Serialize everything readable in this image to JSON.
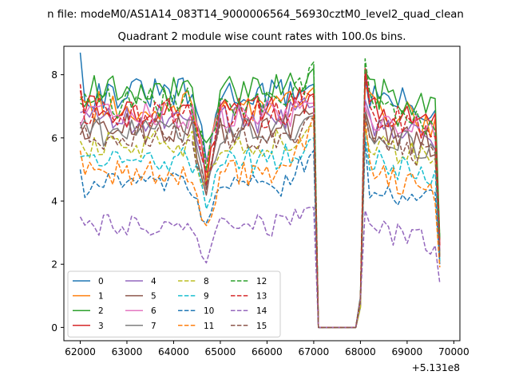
{
  "chart_data": {
    "type": "line",
    "suptitle": "n file: modeM0/AS1A14_083T14_9000006564_56930cztM0_level2_quad_clean",
    "title": "Quadrant 2 module wise count rates with 100.0s bins.",
    "xlabel": "",
    "ylabel": "",
    "x_offset_label": "+5.131e8",
    "xlim": [
      61650,
      70130
    ],
    "ylim": [
      -0.42,
      8.9
    ],
    "xticks": [
      62000,
      63000,
      64000,
      65000,
      66000,
      67000,
      68000,
      69000,
      70000
    ],
    "yticks": [
      0,
      2,
      4,
      6,
      8
    ],
    "x_start": 62000,
    "x_step": 100,
    "x_count": 78,
    "legend_columns": 4,
    "series": [
      {
        "name": "0",
        "color": "#1f77b4",
        "dash": "solid",
        "base": 7.4,
        "first": 8.7,
        "pre_gap": 7.7,
        "post_peak": 7.9,
        "dip": 5.2,
        "last": 2.6
      },
      {
        "name": "1",
        "color": "#ff7f0e",
        "dash": "solid",
        "base": 7.0,
        "first": 7.3,
        "pre_gap": 7.6,
        "post_peak": 7.6,
        "dip": 5.0,
        "last": 2.5
      },
      {
        "name": "2",
        "color": "#2ca02c",
        "dash": "solid",
        "base": 7.5,
        "first": 7.1,
        "pre_gap": 8.2,
        "post_peak": 8.1,
        "dip": 5.7,
        "last": 2.8
      },
      {
        "name": "3",
        "color": "#d62728",
        "dash": "solid",
        "base": 6.9,
        "first": 7.5,
        "pre_gap": 7.4,
        "post_peak": 8.2,
        "dip": 4.8,
        "last": 2.6
      },
      {
        "name": "4",
        "color": "#9467bd",
        "dash": "solid",
        "base": 6.6,
        "first": 6.8,
        "pre_gap": 7.0,
        "post_peak": 7.2,
        "dip": 4.7,
        "last": 2.4
      },
      {
        "name": "5",
        "color": "#8c564b",
        "dash": "solid",
        "base": 6.3,
        "first": 6.5,
        "pre_gap": 6.8,
        "post_peak": 6.9,
        "dip": 4.4,
        "last": 2.3
      },
      {
        "name": "6",
        "color": "#e377c2",
        "dash": "solid",
        "base": 6.7,
        "first": 6.4,
        "pre_gap": 7.1,
        "post_peak": 7.0,
        "dip": 4.9,
        "last": 2.5
      },
      {
        "name": "7",
        "color": "#7f7f7f",
        "dash": "solid",
        "base": 6.2,
        "first": 6.3,
        "pre_gap": 6.7,
        "post_peak": 6.8,
        "dip": 4.5,
        "last": 2.3
      },
      {
        "name": "8",
        "color": "#bcbd22",
        "dash": "dashed",
        "base": 5.8,
        "first": 5.9,
        "pre_gap": 6.4,
        "post_peak": 6.3,
        "dip": 4.3,
        "last": 2.2
      },
      {
        "name": "9",
        "color": "#17becf",
        "dash": "dashed",
        "base": 5.3,
        "first": 5.4,
        "pre_gap": 6.0,
        "post_peak": 6.1,
        "dip": 3.8,
        "last": 2.1
      },
      {
        "name": "10",
        "color": "#1f77b4",
        "dash": "dashed",
        "base": 4.5,
        "first": 5.0,
        "pre_gap": 5.6,
        "post_peak": 5.9,
        "dip": 2.9,
        "last": 2.0
      },
      {
        "name": "11",
        "color": "#ff7f0e",
        "dash": "dashed",
        "base": 4.9,
        "first": 5.6,
        "pre_gap": 6.7,
        "post_peak": 6.6,
        "dip": 3.2,
        "last": 1.9
      },
      {
        "name": "12",
        "color": "#2ca02c",
        "dash": "dashed",
        "base": 7.1,
        "first": 7.2,
        "pre_gap": 8.4,
        "post_peak": 8.5,
        "dip": 5.4,
        "last": 2.8
      },
      {
        "name": "13",
        "color": "#d62728",
        "dash": "dashed",
        "base": 6.8,
        "first": 7.7,
        "pre_gap": 7.3,
        "post_peak": 8.0,
        "dip": 4.8,
        "last": 2.6
      },
      {
        "name": "14",
        "color": "#9467bd",
        "dash": "dashed",
        "base": 3.2,
        "first": 3.5,
        "pre_gap": 3.8,
        "post_peak": 3.7,
        "dip": 2.3,
        "last": 1.4
      },
      {
        "name": "15",
        "color": "#8c564b",
        "dash": "dashed",
        "base": 6.0,
        "first": 6.1,
        "pre_gap": 6.6,
        "post_peak": 6.7,
        "dip": 4.2,
        "last": 2.2
      }
    ]
  }
}
